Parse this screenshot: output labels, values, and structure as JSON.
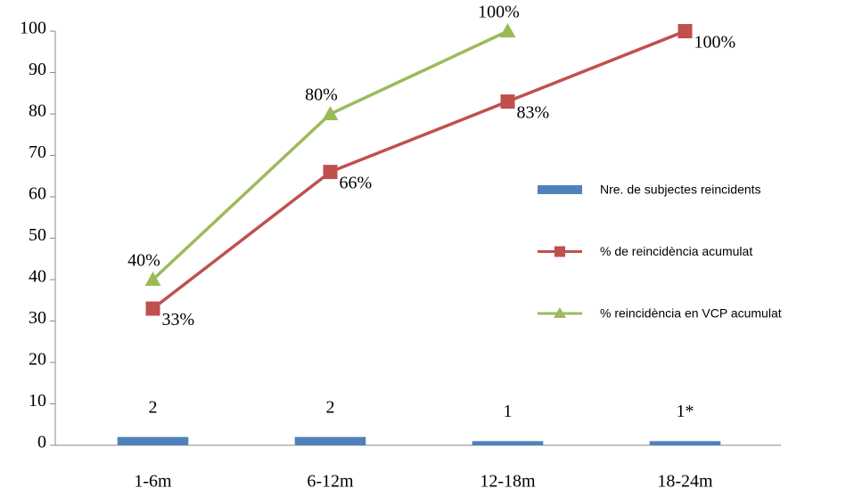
{
  "chart_data": {
    "type": "combo",
    "categories": [
      "1-6m",
      "6-12m",
      "12-18m",
      "18-24m"
    ],
    "series": [
      {
        "name": "Nre. de subjectes reincidents",
        "type": "bar",
        "color": "#4f81bd",
        "values": [
          2,
          2,
          1,
          1
        ],
        "value_labels": [
          "2",
          "2",
          "1",
          "1*"
        ]
      },
      {
        "name": "% de reincidència acumulat",
        "type": "line",
        "marker": "square",
        "color": "#c0504d",
        "values": [
          33,
          66,
          83,
          100
        ],
        "value_labels": [
          "33%",
          "66%",
          "83%",
          "100%"
        ]
      },
      {
        "name": "% reincidència en VCP acumulat",
        "type": "line",
        "marker": "triangle",
        "color": "#9bbb59",
        "values": [
          40,
          80,
          100,
          null
        ],
        "value_labels": [
          "40%",
          "80%",
          "100%",
          null
        ]
      }
    ],
    "ylim": [
      0,
      100
    ],
    "yticks": [
      0,
      10,
      20,
      30,
      40,
      50,
      60,
      70,
      80,
      90,
      100
    ],
    "grid": false,
    "legend": "right"
  }
}
